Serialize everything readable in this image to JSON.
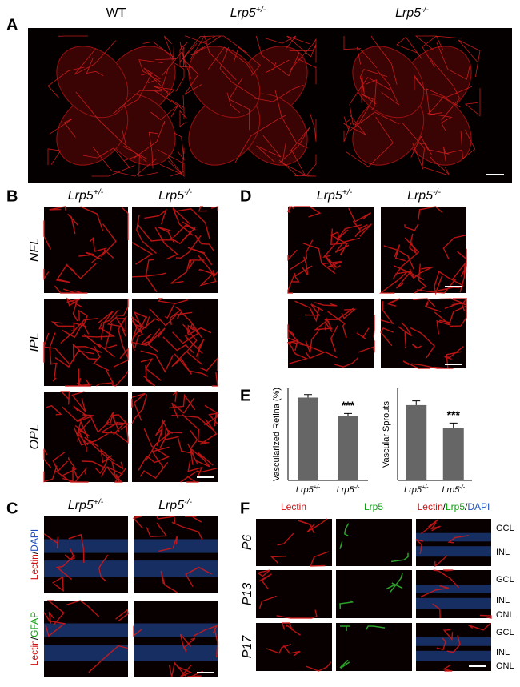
{
  "panels": {
    "A": {
      "label": "A",
      "columns": [
        {
          "text": "WT"
        },
        {
          "gene": "Lrp5",
          "sup": "+/-"
        },
        {
          "gene": "Lrp5",
          "sup": "-/-"
        }
      ]
    },
    "B": {
      "label": "B",
      "columns": [
        {
          "gene": "Lrp5",
          "sup": "+/-"
        },
        {
          "gene": "Lrp5",
          "sup": "-/-"
        }
      ],
      "rows": [
        "NFL",
        "IPL",
        "OPL"
      ]
    },
    "C": {
      "label": "C",
      "columns": [
        {
          "gene": "Lrp5",
          "sup": "+/-"
        },
        {
          "gene": "Lrp5",
          "sup": "-/-"
        }
      ],
      "rows": [
        [
          {
            "text": "Lectin",
            "color": "#d01010"
          },
          {
            "text": "/"
          },
          {
            "text": "DAPI",
            "color": "#2050c0"
          }
        ],
        [
          {
            "text": "Lectin",
            "color": "#d01010"
          },
          {
            "text": "/"
          },
          {
            "text": "GFAP",
            "color": "#10a010"
          }
        ]
      ]
    },
    "D": {
      "label": "D",
      "columns": [
        {
          "gene": "Lrp5",
          "sup": "+/-"
        },
        {
          "gene": "Lrp5",
          "sup": "-/-"
        }
      ]
    },
    "E": {
      "label": "E"
    },
    "F": {
      "label": "F",
      "columns": [
        [
          {
            "text": "Lectin",
            "color": "#d01010"
          }
        ],
        [
          {
            "text": "Lrp5",
            "color": "#10a010"
          }
        ],
        [
          {
            "text": "Lectin",
            "color": "#d01010"
          },
          {
            "text": "/"
          },
          {
            "text": "Lrp5",
            "color": "#10a010"
          },
          {
            "text": "/"
          },
          {
            "text": "DAPI",
            "color": "#2050c0"
          }
        ]
      ],
      "rows": [
        "P6",
        "P13",
        "P17"
      ],
      "layers": [
        [
          "GCL",
          "INL"
        ],
        [
          "GCL",
          "INL",
          "ONL"
        ],
        [
          "GCL",
          "INL",
          "ONL"
        ]
      ]
    }
  },
  "chart_data": [
    {
      "type": "bar",
      "ylabel": "Vascularized Retina (%)",
      "categories": [
        {
          "gene": "Lrp5",
          "sup": "+/-"
        },
        {
          "gene": "Lrp5",
          "sup": "-/-"
        }
      ],
      "values": [
        36,
        28
      ],
      "errors": [
        1.3,
        1.1
      ],
      "color": "#666666",
      "ylim": [
        0,
        40
      ],
      "annotations": [
        {
          "text": "***",
          "x": 1
        }
      ]
    },
    {
      "type": "bar",
      "ylabel": "Vascular Sprouts",
      "categories": [
        {
          "gene": "Lrp5",
          "sup": "+/-"
        },
        {
          "gene": "Lrp5",
          "sup": "-/-"
        }
      ],
      "values": [
        18,
        12.5
      ],
      "errors": [
        1,
        1.2
      ],
      "color": "#666666",
      "ylim": [
        0,
        22
      ],
      "annotations": [
        {
          "text": "***",
          "x": 1
        }
      ]
    }
  ]
}
